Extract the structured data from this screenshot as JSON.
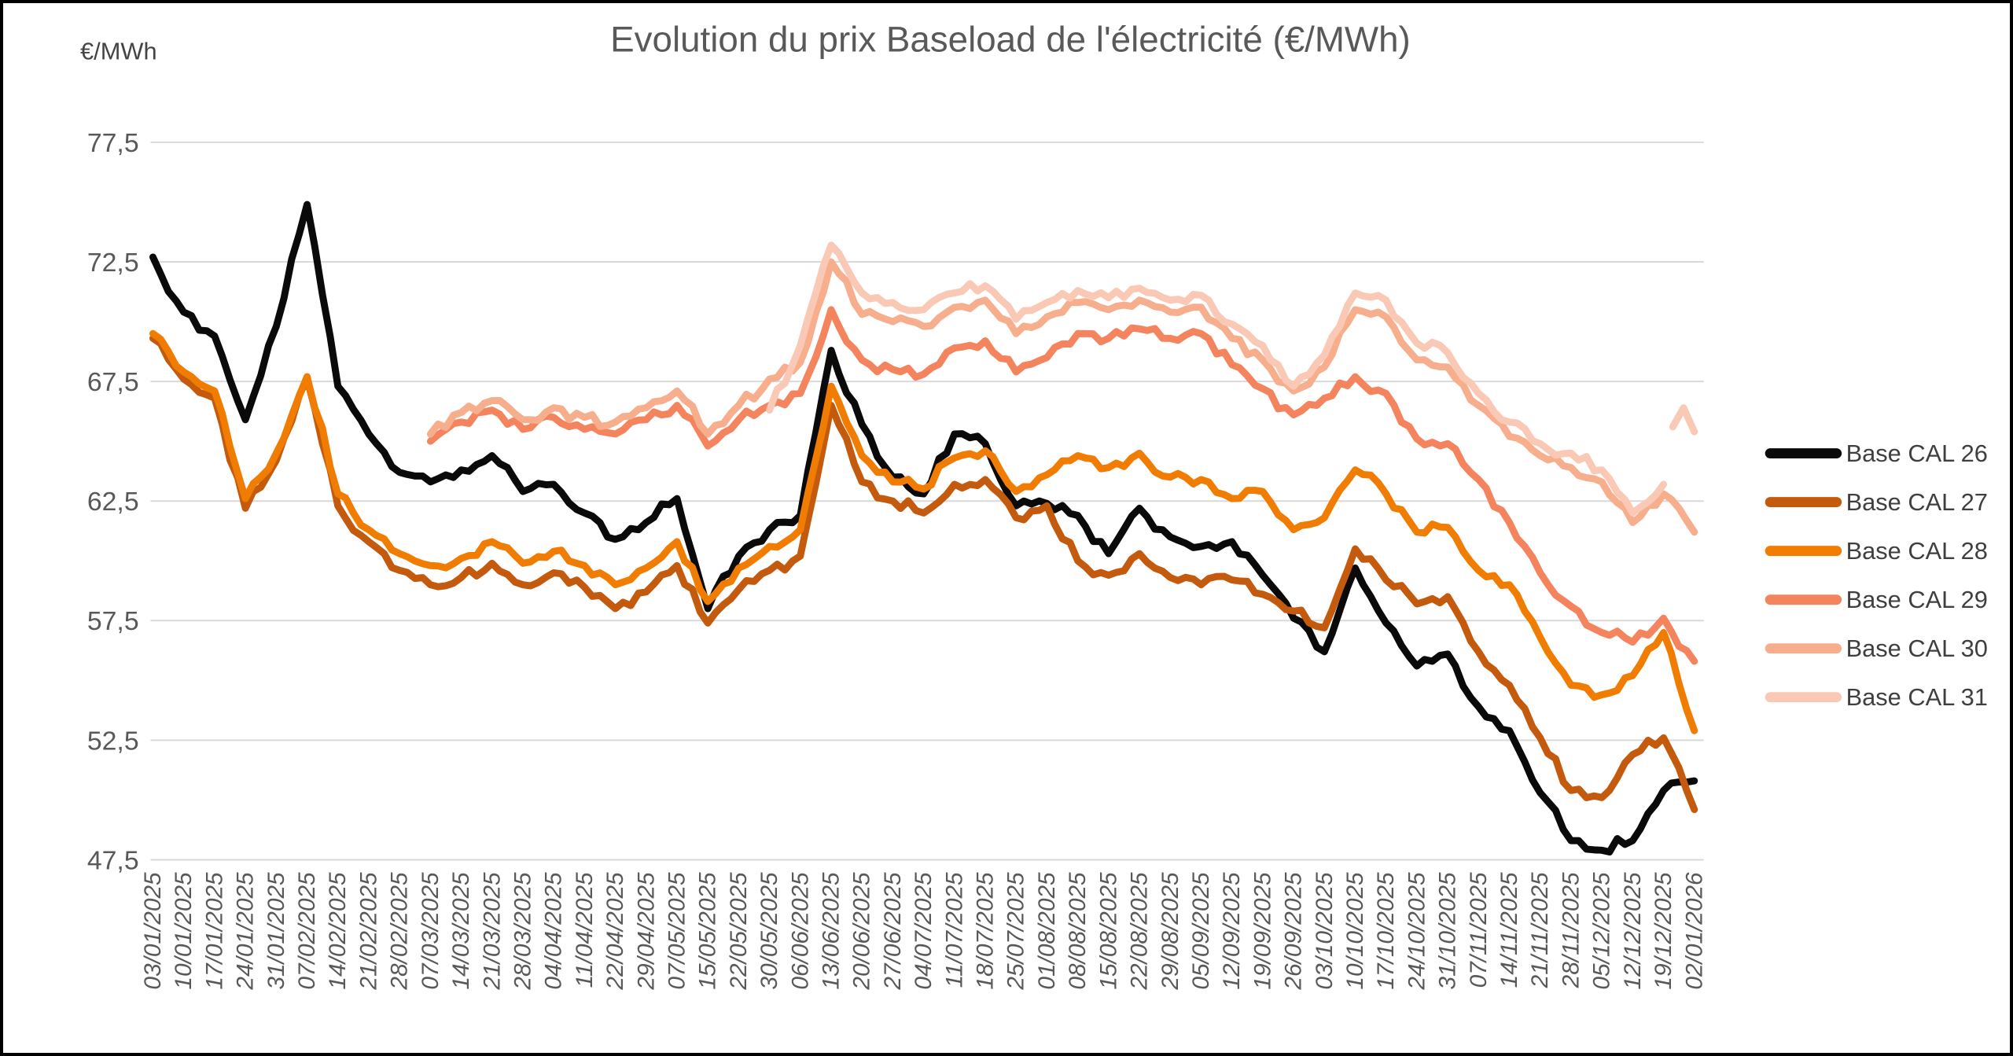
{
  "header": {
    "title": "Evolution du prix Baseload de l'électricité (€/MWh)",
    "unit_label": "€/MWh"
  },
  "colors": {
    "grid": "#d9d9d9",
    "axis_text": "#595959",
    "frame_border": "#000000",
    "background": "#ffffff"
  },
  "chart_data": {
    "type": "line",
    "title": "Evolution du prix Baseload de l'électricité (€/MWh)",
    "ylabel": "€/MWh",
    "xlabel": "",
    "ylim": [
      47.5,
      77.5
    ],
    "grid": true,
    "legend_position": "right",
    "yticks": [
      {
        "value": 77.5,
        "label": "77,5"
      },
      {
        "value": 72.5,
        "label": "72,5"
      },
      {
        "value": 67.5,
        "label": "67,5"
      },
      {
        "value": 62.5,
        "label": "62,5"
      },
      {
        "value": 57.5,
        "label": "57,5"
      },
      {
        "value": 52.5,
        "label": "52,5"
      },
      {
        "value": 47.5,
        "label": "47,5"
      }
    ],
    "x_categories": [
      "03/01/2025",
      "10/01/2025",
      "17/01/2025",
      "24/01/2025",
      "31/01/2025",
      "07/02/2025",
      "14/02/2025",
      "21/02/2025",
      "28/02/2025",
      "07/03/2025",
      "14/03/2025",
      "21/03/2025",
      "28/03/2025",
      "04/04/2025",
      "11/04/2025",
      "22/04/2025",
      "29/04/2025",
      "07/05/2025",
      "15/05/2025",
      "22/05/2025",
      "30/05/2025",
      "06/06/2025",
      "13/06/2025",
      "20/06/2025",
      "27/06/2025",
      "04/07/2025",
      "11/07/2025",
      "18/07/2025",
      "25/07/2025",
      "01/08/2025",
      "08/08/2025",
      "15/08/2025",
      "22/08/2025",
      "29/08/2025",
      "05/09/2025",
      "12/09/2025",
      "19/09/2025",
      "26/09/2025",
      "03/10/2025",
      "10/10/2025",
      "17/10/2025",
      "24/10/2025",
      "31/10/2025",
      "07/11/2025",
      "14/11/2025",
      "21/11/2025",
      "28/11/2025",
      "05/12/2025",
      "12/12/2025",
      "19/12/2025",
      "02/01/2026"
    ],
    "series": [
      {
        "name": "Base CAL 26",
        "color": "#0a0a0a",
        "values": [
          72.7,
          70.4,
          69.4,
          65.9,
          69.8,
          74.9,
          67.3,
          65.3,
          63.7,
          63.3,
          63.8,
          64.4,
          62.9,
          63.2,
          62.0,
          60.9,
          61.6,
          62.6,
          58.0,
          60.2,
          61.3,
          61.9,
          68.8,
          65.7,
          63.5,
          62.8,
          65.3,
          64.9,
          62.3,
          62.4,
          61.9,
          60.3,
          62.2,
          61.0,
          60.6,
          60.8,
          59.4,
          57.6,
          56.2,
          59.7,
          57.4,
          55.6,
          56.1,
          53.9,
          52.9,
          50.3,
          48.3,
          47.9,
          48.3,
          50.4,
          50.8
        ]
      },
      {
        "name": "Base CAL 27",
        "color": "#c45a0d",
        "values": [
          69.3,
          67.6,
          66.8,
          62.2,
          64.2,
          67.6,
          62.3,
          60.8,
          59.6,
          59.0,
          59.3,
          59.9,
          59.0,
          59.5,
          58.9,
          58.0,
          58.7,
          59.8,
          57.4,
          58.8,
          59.6,
          60.2,
          66.5,
          63.3,
          62.5,
          62.0,
          63.2,
          63.4,
          61.8,
          62.3,
          60.0,
          59.4,
          60.3,
          59.3,
          59.0,
          59.2,
          58.6,
          57.9,
          57.2,
          60.5,
          59.2,
          58.2,
          58.5,
          56.2,
          54.8,
          52.6,
          50.4,
          50.1,
          51.9,
          52.6,
          49.6
        ]
      },
      {
        "name": "Base CAL 28",
        "color": "#f07d02",
        "values": [
          69.5,
          67.9,
          67.1,
          62.6,
          64.5,
          67.7,
          62.8,
          61.3,
          60.3,
          59.8,
          60.1,
          60.8,
          59.9,
          60.4,
          59.8,
          59.0,
          59.7,
          60.8,
          58.3,
          59.7,
          60.6,
          61.3,
          67.3,
          64.4,
          63.3,
          63.0,
          64.3,
          64.6,
          62.9,
          63.6,
          64.4,
          63.9,
          64.5,
          63.5,
          63.4,
          62.6,
          62.9,
          61.3,
          61.8,
          63.8,
          62.8,
          61.2,
          61.4,
          59.6,
          59.0,
          56.8,
          54.8,
          54.4,
          55.2,
          57.0,
          52.9
        ]
      },
      {
        "name": "Base CAL 29",
        "color": "#f4845e",
        "values": [
          null,
          null,
          null,
          null,
          null,
          null,
          null,
          null,
          null,
          65.0,
          65.8,
          66.3,
          65.5,
          66.0,
          65.5,
          65.3,
          65.9,
          66.5,
          64.8,
          65.9,
          66.5,
          67.0,
          70.5,
          68.4,
          68.0,
          67.8,
          68.9,
          69.2,
          67.9,
          68.5,
          69.5,
          69.3,
          69.7,
          69.3,
          69.5,
          68.2,
          67.2,
          66.1,
          66.8,
          67.7,
          67.0,
          65.1,
          64.9,
          63.4,
          61.6,
          59.5,
          58.1,
          57.0,
          56.6,
          57.6,
          55.8
        ]
      },
      {
        "name": "Base CAL 30",
        "color": "#f6ae8d",
        "values": [
          null,
          null,
          null,
          null,
          null,
          null,
          null,
          null,
          null,
          65.3,
          66.2,
          66.7,
          65.9,
          66.4,
          66.0,
          65.8,
          66.4,
          67.1,
          65.3,
          66.5,
          67.6,
          68.3,
          72.5,
          70.3,
          70.0,
          69.8,
          70.6,
          70.9,
          69.5,
          70.2,
          70.8,
          70.5,
          70.9,
          70.4,
          70.6,
          69.3,
          68.4,
          67.1,
          68.1,
          70.5,
          70.2,
          68.4,
          68.1,
          66.5,
          65.2,
          64.4,
          63.9,
          63.3,
          61.6,
          62.8,
          61.2
        ]
      },
      {
        "name": "Base CAL 31",
        "color": "#f9c9b6",
        "values": [
          null,
          null,
          null,
          null,
          null,
          null,
          null,
          null,
          null,
          null,
          null,
          null,
          null,
          null,
          null,
          null,
          null,
          null,
          null,
          null,
          66.3,
          69.0,
          73.2,
          71.2,
          70.8,
          70.5,
          71.2,
          71.5,
          70.1,
          70.8,
          71.3,
          71.0,
          71.4,
          70.9,
          71.1,
          69.9,
          69.0,
          67.3,
          68.6,
          71.2,
          70.9,
          69.1,
          68.7,
          67.0,
          65.8,
          64.9,
          64.5,
          63.8,
          62.0,
          63.2,
          null
        ]
      }
    ],
    "cal31_hook": {
      "series_name": "Base CAL 31",
      "points": [
        [
          49.3,
          65.6
        ],
        [
          49.65,
          66.4
        ],
        [
          50.0,
          65.4
        ]
      ]
    }
  },
  "legend": {
    "items": [
      "Base CAL 26",
      "Base CAL 27",
      "Base CAL 28",
      "Base CAL 29",
      "Base CAL 30",
      "Base CAL 31"
    ]
  }
}
